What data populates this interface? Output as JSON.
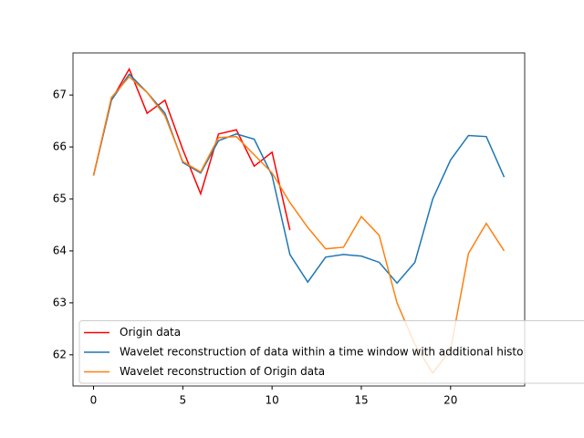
{
  "chart_data": {
    "type": "line",
    "x": [
      0,
      1,
      2,
      3,
      4,
      5,
      6,
      7,
      8,
      9,
      10,
      11,
      12,
      13,
      14,
      15,
      16,
      17,
      18,
      19,
      20,
      21,
      22,
      23
    ],
    "series": [
      {
        "name": "Origin data",
        "color": "red",
        "values": [
          65.45,
          66.9,
          67.5,
          66.65,
          66.9,
          65.95,
          65.1,
          66.25,
          66.33,
          65.63,
          65.9,
          64.4,
          null,
          null,
          null,
          null,
          null,
          null,
          null,
          null,
          null,
          null,
          null,
          null
        ]
      },
      {
        "name": "Wavelet reconstruction of data within a time window with additional histo",
        "color": "#1f77b4",
        "values": [
          65.45,
          66.9,
          67.4,
          67.05,
          66.65,
          65.7,
          65.5,
          66.12,
          66.25,
          66.15,
          65.45,
          63.93,
          63.4,
          63.88,
          63.93,
          63.9,
          63.78,
          63.38,
          63.78,
          65.0,
          65.75,
          66.22,
          66.2,
          65.42
        ]
      },
      {
        "name": "Wavelet reconstruction of Origin data",
        "color": "#ff7f0e",
        "values": [
          65.45,
          66.95,
          67.35,
          67.05,
          66.6,
          65.72,
          65.52,
          66.18,
          66.2,
          65.85,
          65.5,
          64.93,
          64.45,
          64.04,
          64.07,
          64.66,
          64.3,
          63.0,
          62.2,
          61.65,
          62.1,
          63.95,
          64.53,
          64.0
        ]
      }
    ],
    "xlim": [
      -1.15,
      24.15
    ],
    "xticks": [
      0,
      5,
      10,
      15,
      20
    ],
    "ylim": [
      61.4,
      67.81
    ],
    "yticks": [
      62,
      63,
      64,
      65,
      66,
      67
    ],
    "legend": "lower-left"
  }
}
